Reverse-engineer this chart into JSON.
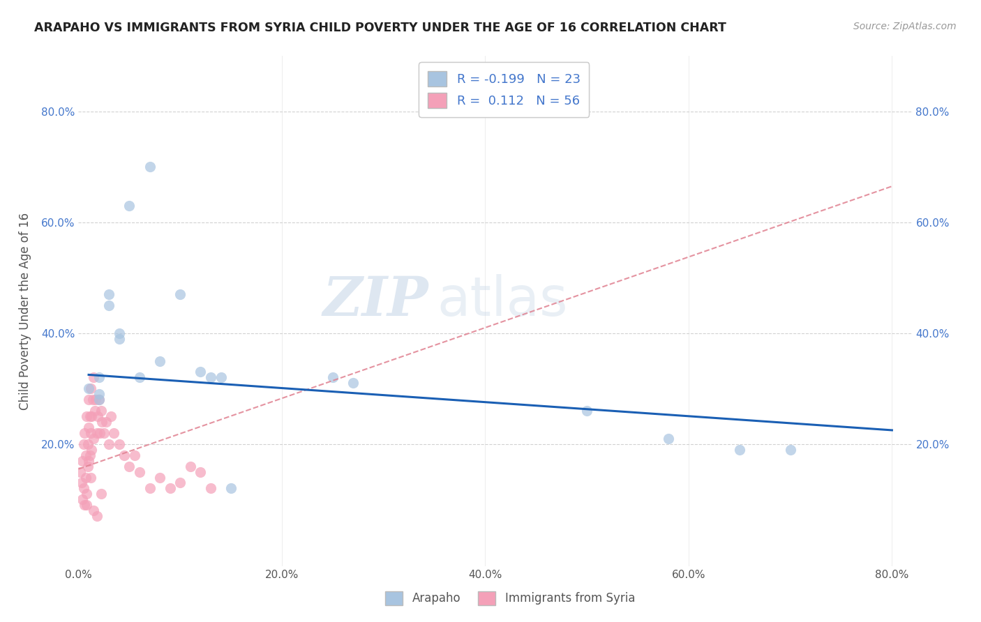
{
  "title": "ARAPAHO VS IMMIGRANTS FROM SYRIA CHILD POVERTY UNDER THE AGE OF 16 CORRELATION CHART",
  "source": "Source: ZipAtlas.com",
  "ylabel": "Child Poverty Under the Age of 16",
  "xlim": [
    0.0,
    0.82
  ],
  "ylim": [
    -0.02,
    0.9
  ],
  "xtick_labels": [
    "0.0%",
    "",
    "20.0%",
    "",
    "40.0%",
    "",
    "60.0%",
    "",
    "80.0%"
  ],
  "xtick_vals": [
    0.0,
    0.1,
    0.2,
    0.3,
    0.4,
    0.5,
    0.6,
    0.7,
    0.8
  ],
  "ytick_labels": [
    "20.0%",
    "40.0%",
    "60.0%",
    "80.0%"
  ],
  "ytick_vals": [
    0.2,
    0.4,
    0.6,
    0.8
  ],
  "arapaho_color": "#a8c4e0",
  "syria_color": "#f4a0b8",
  "arapaho_line_color": "#1a5fb4",
  "syria_line_color": "#e08090",
  "R_arapaho": -0.199,
  "N_arapaho": 23,
  "R_syria": 0.112,
  "N_syria": 56,
  "watermark_zip": "ZIP",
  "watermark_atlas": "atlas",
  "arapaho_x": [
    0.01,
    0.02,
    0.02,
    0.02,
    0.03,
    0.03,
    0.04,
    0.04,
    0.05,
    0.06,
    0.07,
    0.08,
    0.1,
    0.12,
    0.13,
    0.14,
    0.15,
    0.25,
    0.27,
    0.5,
    0.58,
    0.65,
    0.7
  ],
  "arapaho_y": [
    0.3,
    0.32,
    0.29,
    0.28,
    0.45,
    0.47,
    0.4,
    0.39,
    0.63,
    0.32,
    0.7,
    0.35,
    0.47,
    0.33,
    0.32,
    0.32,
    0.12,
    0.32,
    0.31,
    0.26,
    0.21,
    0.19,
    0.19
  ],
  "syria_x": [
    0.002,
    0.003,
    0.004,
    0.004,
    0.005,
    0.005,
    0.006,
    0.006,
    0.007,
    0.007,
    0.008,
    0.008,
    0.009,
    0.009,
    0.01,
    0.01,
    0.011,
    0.011,
    0.012,
    0.012,
    0.013,
    0.013,
    0.014,
    0.015,
    0.015,
    0.016,
    0.017,
    0.018,
    0.019,
    0.02,
    0.021,
    0.022,
    0.023,
    0.025,
    0.027,
    0.03,
    0.032,
    0.035,
    0.04,
    0.045,
    0.05,
    0.055,
    0.06,
    0.07,
    0.08,
    0.09,
    0.1,
    0.11,
    0.12,
    0.13,
    0.01,
    0.012,
    0.008,
    0.015,
    0.018,
    0.022
  ],
  "syria_y": [
    0.15,
    0.13,
    0.17,
    0.1,
    0.2,
    0.12,
    0.22,
    0.09,
    0.18,
    0.14,
    0.25,
    0.11,
    0.2,
    0.16,
    0.28,
    0.23,
    0.25,
    0.18,
    0.3,
    0.22,
    0.25,
    0.19,
    0.28,
    0.32,
    0.21,
    0.26,
    0.28,
    0.22,
    0.25,
    0.28,
    0.22,
    0.26,
    0.24,
    0.22,
    0.24,
    0.2,
    0.25,
    0.22,
    0.2,
    0.18,
    0.16,
    0.18,
    0.15,
    0.12,
    0.14,
    0.12,
    0.13,
    0.16,
    0.15,
    0.12,
    0.17,
    0.14,
    0.09,
    0.08,
    0.07,
    0.11
  ],
  "background_color": "#ffffff",
  "grid_color": "#cccccc",
  "arapaho_trendline_x": [
    0.01,
    0.8
  ],
  "arapaho_trendline_y": [
    0.325,
    0.225
  ],
  "syria_trendline_x": [
    0.0,
    0.8
  ],
  "syria_trendline_y": [
    0.155,
    0.665
  ]
}
